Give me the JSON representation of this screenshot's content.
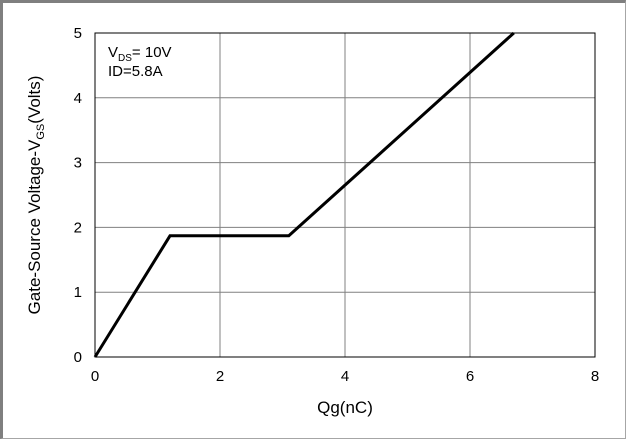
{
  "chart_data": {
    "type": "line",
    "title": "",
    "xlabel": "Qg(nC)",
    "ylabel": {
      "prefix": "Gate-Source Voltage-V",
      "subscript": "GS",
      "suffix": "(Volts)"
    },
    "xlim": [
      0,
      8
    ],
    "ylim": [
      0,
      5
    ],
    "x_ticks": [
      "0",
      "2",
      "4",
      "6",
      "8"
    ],
    "y_ticks": [
      "0",
      "1",
      "2",
      "3",
      "4",
      "5"
    ],
    "grid": true,
    "annotations": {
      "vds": {
        "prefix": "V",
        "subscript": "DS",
        "suffix": "= 10V"
      },
      "id": "ID=5.8A"
    },
    "series": [
      {
        "color": "#000000",
        "points": [
          {
            "x": 0,
            "y": 0
          },
          {
            "x": 1.2,
            "y": 1.87
          },
          {
            "x": 3.1,
            "y": 1.87
          },
          {
            "x": 6.7,
            "y": 5
          }
        ]
      }
    ]
  }
}
